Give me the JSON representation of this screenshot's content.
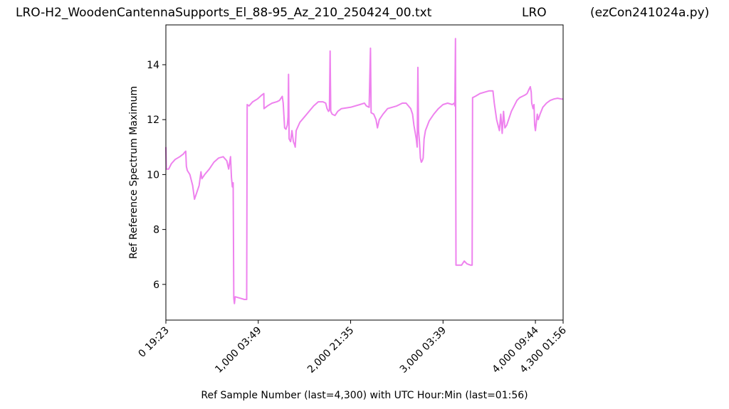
{
  "header": {
    "title_left": "LRO-H2_WoodenCantennaSupports_El_88-95_Az_210_250424_00.txt",
    "title_mid": "LRO",
    "title_right": "(ezCon241024a.py)"
  },
  "chart_data": {
    "type": "line",
    "xlabel": "Ref Sample Number (last=4,300) with UTC Hour:Min (last=01:56)",
    "ylabel": "Ref Reference Spectrum Maximum",
    "xlim": [
      0,
      4300
    ],
    "ylim": [
      4.7,
      15.45
    ],
    "x_ticks": [
      {
        "value": 0,
        "label": "0  19:23"
      },
      {
        "value": 1000,
        "label": "1,000  03:49"
      },
      {
        "value": 2000,
        "label": "2,000  21:35"
      },
      {
        "value": 3000,
        "label": "3,000  03:39"
      },
      {
        "value": 4000,
        "label": "4,000  09:44"
      },
      {
        "value": 4300,
        "label": "4,300  01:56"
      }
    ],
    "y_ticks": [
      {
        "value": 6,
        "label": "6"
      },
      {
        "value": 8,
        "label": "8"
      },
      {
        "value": 10,
        "label": "10"
      },
      {
        "value": 12,
        "label": "12"
      },
      {
        "value": 14,
        "label": "14"
      }
    ],
    "grid": false,
    "series": [
      {
        "color": "#ee82ee",
        "points": [
          [
            0,
            11.0
          ],
          [
            5,
            10.2
          ],
          [
            30,
            10.2
          ],
          [
            60,
            10.4
          ],
          [
            100,
            10.55
          ],
          [
            150,
            10.65
          ],
          [
            190,
            10.75
          ],
          [
            200,
            10.8
          ],
          [
            215,
            10.85
          ],
          [
            222,
            10.3
          ],
          [
            232,
            10.15
          ],
          [
            260,
            10.0
          ],
          [
            290,
            9.6
          ],
          [
            310,
            9.1
          ],
          [
            330,
            9.3
          ],
          [
            360,
            9.6
          ],
          [
            380,
            10.1
          ],
          [
            390,
            9.85
          ],
          [
            420,
            10.0
          ],
          [
            470,
            10.2
          ],
          [
            520,
            10.45
          ],
          [
            570,
            10.6
          ],
          [
            620,
            10.65
          ],
          [
            660,
            10.5
          ],
          [
            680,
            10.2
          ],
          [
            700,
            10.65
          ],
          [
            710,
            9.9
          ],
          [
            720,
            9.55
          ],
          [
            728,
            9.7
          ],
          [
            735,
            5.5
          ],
          [
            742,
            5.3
          ],
          [
            750,
            5.55
          ],
          [
            800,
            5.5
          ],
          [
            850,
            5.45
          ],
          [
            875,
            5.45
          ],
          [
            880,
            12.55
          ],
          [
            900,
            12.5
          ],
          [
            940,
            12.65
          ],
          [
            990,
            12.75
          ],
          [
            1040,
            12.9
          ],
          [
            1060,
            12.95
          ],
          [
            1062,
            12.4
          ],
          [
            1100,
            12.5
          ],
          [
            1150,
            12.6
          ],
          [
            1200,
            12.65
          ],
          [
            1230,
            12.7
          ],
          [
            1260,
            12.85
          ],
          [
            1270,
            12.6
          ],
          [
            1285,
            11.7
          ],
          [
            1300,
            11.65
          ],
          [
            1315,
            11.8
          ],
          [
            1322,
            12.1
          ],
          [
            1328,
            13.65
          ],
          [
            1334,
            11.3
          ],
          [
            1350,
            11.2
          ],
          [
            1365,
            11.6
          ],
          [
            1380,
            11.2
          ],
          [
            1392,
            11.1
          ],
          [
            1400,
            11.0
          ],
          [
            1410,
            11.6
          ],
          [
            1450,
            11.9
          ],
          [
            1500,
            12.1
          ],
          [
            1550,
            12.3
          ],
          [
            1600,
            12.5
          ],
          [
            1650,
            12.65
          ],
          [
            1700,
            12.65
          ],
          [
            1730,
            12.6
          ],
          [
            1745,
            12.4
          ],
          [
            1760,
            12.3
          ],
          [
            1770,
            12.35
          ],
          [
            1778,
            14.5
          ],
          [
            1785,
            12.3
          ],
          [
            1800,
            12.2
          ],
          [
            1830,
            12.15
          ],
          [
            1860,
            12.3
          ],
          [
            1900,
            12.4
          ],
          [
            2000,
            12.45
          ],
          [
            2100,
            12.55
          ],
          [
            2150,
            12.6
          ],
          [
            2170,
            12.5
          ],
          [
            2200,
            12.45
          ],
          [
            2215,
            14.6
          ],
          [
            2222,
            12.25
          ],
          [
            2250,
            12.2
          ],
          [
            2275,
            12.0
          ],
          [
            2290,
            11.7
          ],
          [
            2310,
            12.0
          ],
          [
            2350,
            12.2
          ],
          [
            2400,
            12.4
          ],
          [
            2500,
            12.5
          ],
          [
            2560,
            12.6
          ],
          [
            2600,
            12.6
          ],
          [
            2650,
            12.4
          ],
          [
            2670,
            12.2
          ],
          [
            2685,
            11.8
          ],
          [
            2700,
            11.5
          ],
          [
            2710,
            11.3
          ],
          [
            2720,
            11.0
          ],
          [
            2728,
            13.9
          ],
          [
            2735,
            11.6
          ],
          [
            2745,
            11.2
          ],
          [
            2755,
            10.6
          ],
          [
            2765,
            10.45
          ],
          [
            2775,
            10.5
          ],
          [
            2785,
            10.6
          ],
          [
            2795,
            11.3
          ],
          [
            2810,
            11.6
          ],
          [
            2850,
            11.95
          ],
          [
            2900,
            12.2
          ],
          [
            2950,
            12.4
          ],
          [
            3000,
            12.55
          ],
          [
            3050,
            12.6
          ],
          [
            3100,
            12.55
          ],
          [
            3120,
            12.6
          ],
          [
            3128,
            12.5
          ],
          [
            3135,
            14.95
          ],
          [
            3140,
            6.7
          ],
          [
            3200,
            6.7
          ],
          [
            3230,
            6.85
          ],
          [
            3260,
            6.75
          ],
          [
            3300,
            6.7
          ],
          [
            3315,
            6.7
          ],
          [
            3320,
            12.8
          ],
          [
            3350,
            12.85
          ],
          [
            3400,
            12.95
          ],
          [
            3450,
            13.0
          ],
          [
            3500,
            13.05
          ],
          [
            3540,
            13.05
          ],
          [
            3555,
            12.6
          ],
          [
            3580,
            12.0
          ],
          [
            3610,
            11.6
          ],
          [
            3625,
            12.2
          ],
          [
            3640,
            11.5
          ],
          [
            3655,
            12.3
          ],
          [
            3670,
            11.7
          ],
          [
            3690,
            11.8
          ],
          [
            3710,
            12.0
          ],
          [
            3740,
            12.3
          ],
          [
            3770,
            12.5
          ],
          [
            3800,
            12.7
          ],
          [
            3830,
            12.8
          ],
          [
            3860,
            12.85
          ],
          [
            3890,
            12.9
          ],
          [
            3910,
            12.95
          ],
          [
            3930,
            13.1
          ],
          [
            3945,
            13.2
          ],
          [
            3955,
            13.0
          ],
          [
            3960,
            12.6
          ],
          [
            3975,
            12.4
          ],
          [
            3985,
            12.55
          ],
          [
            3992,
            11.8
          ],
          [
            4000,
            11.6
          ],
          [
            4010,
            11.9
          ],
          [
            4020,
            12.2
          ],
          [
            4030,
            12.0
          ],
          [
            4050,
            12.2
          ],
          [
            4080,
            12.45
          ],
          [
            4120,
            12.6
          ],
          [
            4160,
            12.7
          ],
          [
            4200,
            12.75
          ],
          [
            4240,
            12.78
          ],
          [
            4280,
            12.75
          ],
          [
            4300,
            12.75
          ]
        ]
      }
    ]
  }
}
